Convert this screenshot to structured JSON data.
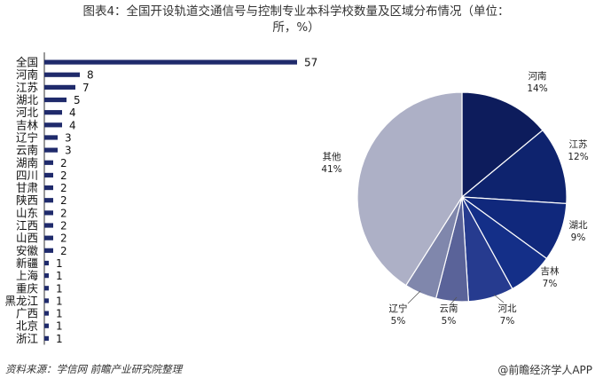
{
  "title_line1": "图表4：全国开设轨道交通信号与控制专业本科学校数量及区域分布情况（单位：",
  "title_line2": "所，%）",
  "source": "资料来源：学信网 前瞻产业研究院整理",
  "brand": "@前瞻经济学人APP",
  "colors": {
    "bar": "#1f2a6b"
  },
  "chart_data": [
    {
      "type": "bar",
      "orientation": "horizontal",
      "categories": [
        "全国",
        "河南",
        "江苏",
        "湖北",
        "河北",
        "吉林",
        "辽宁",
        "云南",
        "湖南",
        "四川",
        "甘肃",
        "陕西",
        "山东",
        "江西",
        "山西",
        "安徽",
        "新疆",
        "上海",
        "重庆",
        "黑龙江",
        "广西",
        "北京",
        "浙江"
      ],
      "values": [
        57,
        8,
        7,
        5,
        4,
        4,
        3,
        3,
        2,
        2,
        2,
        2,
        2,
        2,
        2,
        2,
        1,
        1,
        1,
        1,
        1,
        1,
        1
      ],
      "xlim": [
        0,
        57
      ],
      "grid": false
    },
    {
      "type": "pie",
      "slices": [
        {
          "label": "河南",
          "value": 14,
          "value_label": "14%",
          "color": "#0d1c5c"
        },
        {
          "label": "江苏",
          "value": 12,
          "value_label": "12%",
          "color": "#0e236e"
        },
        {
          "label": "湖北",
          "value": 9,
          "value_label": "9%",
          "color": "#10287c"
        },
        {
          "label": "吉林",
          "value": 7,
          "value_label": "7%",
          "color": "#142f88"
        },
        {
          "label": "河北",
          "value": 7,
          "value_label": "7%",
          "color": "#263b8f"
        },
        {
          "label": "云南",
          "value": 5,
          "value_label": "5%",
          "color": "#5a6399"
        },
        {
          "label": "辽宁",
          "value": 5,
          "value_label": "5%",
          "color": "#8087ac"
        },
        {
          "label": "其他",
          "value": 41,
          "value_label": "41%",
          "color": "#adb0c6"
        }
      ]
    }
  ]
}
